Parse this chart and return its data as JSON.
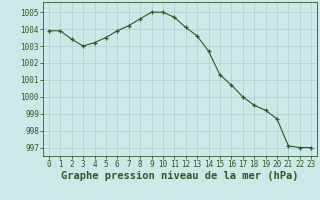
{
  "x": [
    0,
    1,
    2,
    3,
    4,
    5,
    6,
    7,
    8,
    9,
    10,
    11,
    12,
    13,
    14,
    15,
    16,
    17,
    18,
    19,
    20,
    21,
    22,
    23
  ],
  "y": [
    1003.9,
    1003.9,
    1003.4,
    1003.0,
    1003.2,
    1003.5,
    1003.9,
    1004.2,
    1004.6,
    1005.0,
    1005.0,
    1004.7,
    1004.1,
    1003.6,
    1002.7,
    1001.3,
    1000.7,
    1000.0,
    999.5,
    999.2,
    998.7,
    997.1,
    997.0,
    997.0
  ],
  "line_color": "#2d5a27",
  "marker": "+",
  "background_color": "#cce8e8",
  "grid_color": "#aacfcf",
  "xlabel": "Graphe pression niveau de la mer (hPa)",
  "ylim": [
    996.5,
    1005.6
  ],
  "xlim": [
    -0.5,
    23.5
  ],
  "yticks": [
    997,
    998,
    999,
    1000,
    1001,
    1002,
    1003,
    1004,
    1005
  ],
  "xticks": [
    0,
    1,
    2,
    3,
    4,
    5,
    6,
    7,
    8,
    9,
    10,
    11,
    12,
    13,
    14,
    15,
    16,
    17,
    18,
    19,
    20,
    21,
    22,
    23
  ],
  "tick_label_fontsize": 5.5,
  "xlabel_fontsize": 7.5,
  "xlabel_fontweight": "bold",
  "linewidth": 0.8,
  "markersize": 3.5,
  "markeredgewidth": 0.9
}
